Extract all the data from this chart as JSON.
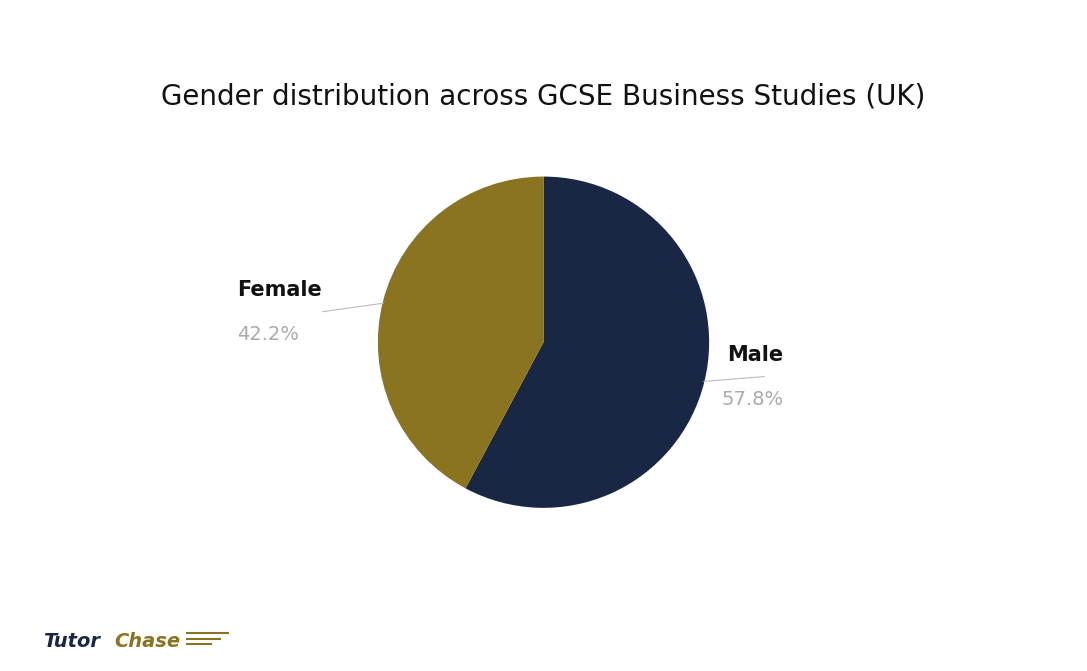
{
  "title": "Gender distribution across GCSE Business Studies (UK)",
  "slices": [
    "Male",
    "Female"
  ],
  "values": [
    57.8,
    42.2
  ],
  "colors": [
    "#1a2744",
    "#8b7420"
  ],
  "background_color": "#ffffff",
  "title_fontsize": 20,
  "label_fontsize": 15,
  "pct_fontsize": 14,
  "pct_color": "#aaaaaa",
  "label_color": "#111111",
  "startangle": 90,
  "tutor_color": "#1a2744",
  "chase_color": "#8b7420",
  "female_label": "Female",
  "female_pct": "42.2%",
  "male_label": "Male",
  "male_pct": "57.8%"
}
